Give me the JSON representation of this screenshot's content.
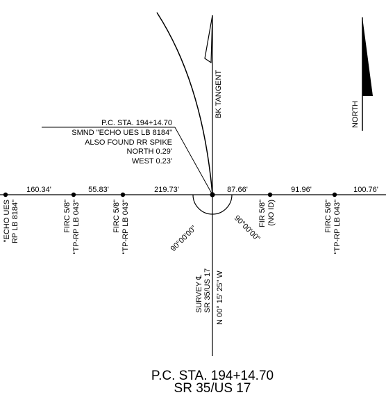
{
  "labels": {
    "bk_tangent": "BK TANGENT",
    "north": "NORTH",
    "pc_callout": [
      "P.C. STA. 194+14.70",
      "SMND \"ECHO UES LB 8184\"",
      "ALSO FOUND RR SPIKE",
      "NORTH 0.29'",
      "WEST 0.23'"
    ],
    "distances": [
      "160.34'",
      "55.83'",
      "219.73'",
      "87.66'",
      "91.96'",
      "100.76'"
    ],
    "angle_left": "90°00'00\"",
    "angle_right": "90°00'00\"",
    "monuments": [
      {
        "line1": "\"ECHO UES",
        "line2": "RP LB 8184\""
      },
      {
        "line1": "FIRC 5/8\"",
        "line2": "\"TP-RP LB 043\""
      },
      {
        "line1": "FIRC 5/8\"",
        "line2": "\"TP-RP LB 043\""
      },
      {
        "line1": "FIR 5/8\"",
        "line2": "(NO ID)"
      },
      {
        "line1": "FIRC 5/8\"",
        "line2": "\"TP-RP LB 043\""
      }
    ],
    "survey_cl": [
      "SURVEY ℄",
      "SR 35/US 17"
    ],
    "bearing": "N 00° 15' 25\" W"
  },
  "title": {
    "line1": "P.C. STA. 194+14.70",
    "line2": "SR 35/US 17"
  }
}
